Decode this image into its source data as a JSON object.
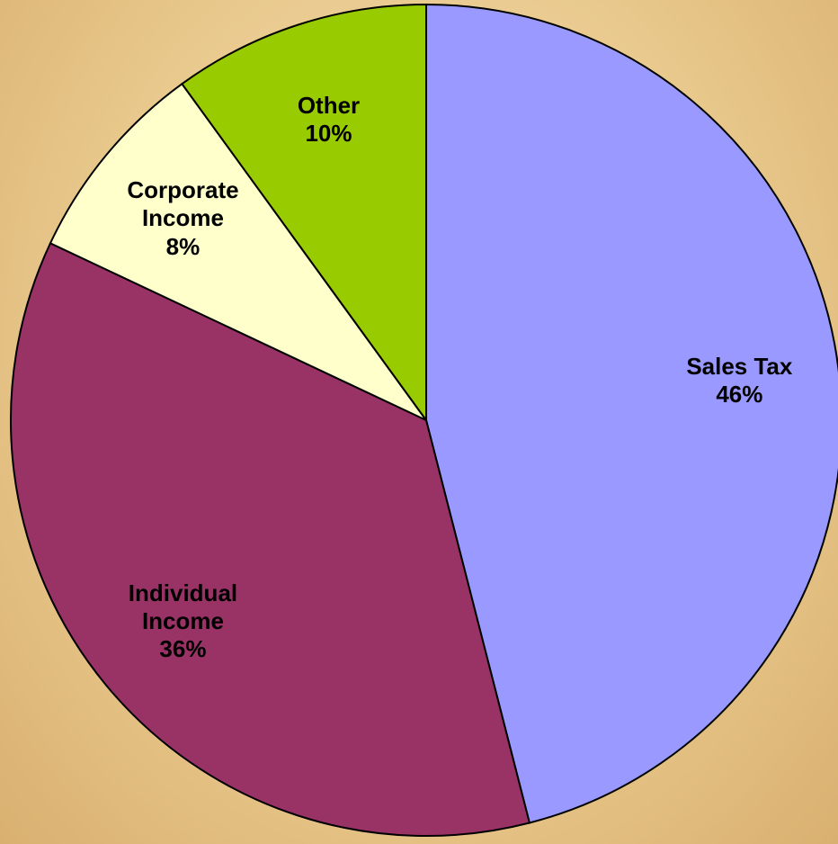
{
  "chart_data": {
    "type": "pie",
    "categories": [
      "Sales Tax",
      "Individual Income",
      "Corporate Income",
      "Other"
    ],
    "values": [
      46,
      36,
      8,
      10
    ],
    "value_labels": [
      "46%",
      "36%",
      "8%",
      "10%"
    ],
    "colors": [
      "#9999ff",
      "#993366",
      "#ffffcc",
      "#99cc00"
    ]
  }
}
